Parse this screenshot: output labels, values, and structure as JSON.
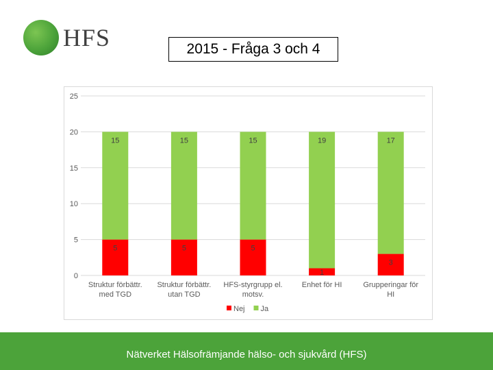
{
  "logo": {
    "text": "HFS"
  },
  "title": "2015 - Fråga 3 och 4",
  "footer": {
    "text": "Nätverket Hälsofrämjande hälso- och sjukvård (HFS)"
  },
  "colors": {
    "nej": "#ff0000",
    "ja": "#92d050",
    "brand_green": "#4ca33a"
  },
  "chart_data": {
    "type": "bar",
    "stacked": true,
    "categories": [
      [
        "Struktur förbättr.",
        "med TGD"
      ],
      [
        "Struktur förbättr.",
        "utan TGD"
      ],
      [
        "HFS-styrgrupp el.",
        "motsv."
      ],
      [
        "Enhet för HI"
      ],
      [
        "Grupperingar för",
        "HI"
      ]
    ],
    "series": [
      {
        "name": "Nej",
        "color": "#ff0000",
        "values": [
          5,
          5,
          5,
          1,
          3
        ]
      },
      {
        "name": "Ja",
        "color": "#92d050",
        "values": [
          15,
          15,
          15,
          19,
          17
        ]
      }
    ],
    "ylim": [
      0,
      25
    ],
    "yticks": [
      0,
      5,
      10,
      15,
      20,
      25
    ],
    "grid": true,
    "legend": "bottom"
  }
}
